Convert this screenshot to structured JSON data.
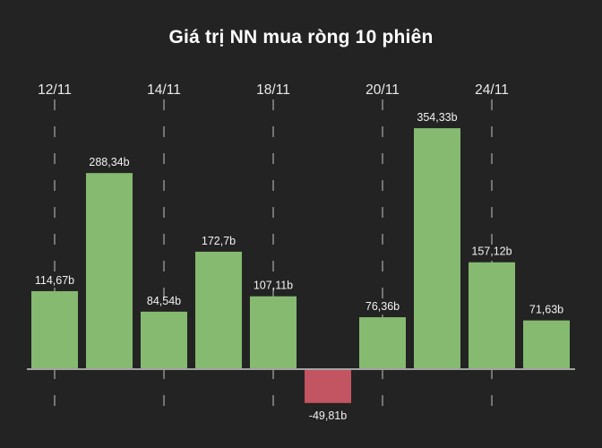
{
  "page": {
    "background": "#232323"
  },
  "chart_data": {
    "type": "bar",
    "title": "Giá trị NN mua ròng 10 phiên",
    "unit_suffix": "b",
    "x_tick_labels": [
      "12/11",
      "14/11",
      "18/11",
      "20/11",
      "24/11"
    ],
    "x_tick_bar_indices": [
      0,
      2,
      4,
      6,
      8
    ],
    "grid": "vertical-dashed",
    "ylim": [
      -60,
      370
    ],
    "bars": [
      {
        "label": "114,67b",
        "value": 114.67
      },
      {
        "label": "288,34b",
        "value": 288.34
      },
      {
        "label": "84,54b",
        "value": 84.54
      },
      {
        "label": "172,7b",
        "value": 172.7
      },
      {
        "label": "107,11b",
        "value": 107.11
      },
      {
        "label": "-49,81b",
        "value": -49.81
      },
      {
        "label": "76,36b",
        "value": 76.36
      },
      {
        "label": "354,33b",
        "value": 354.33
      },
      {
        "label": "157,12b",
        "value": 157.12
      },
      {
        "label": "71,63b",
        "value": 71.63
      }
    ],
    "colors": {
      "positive_bar": "#85ba70",
      "negative_bar": "#c25561",
      "axis_line": "#a3a3a3",
      "grid_dash": "#909090",
      "title_text": "#ffffff",
      "tick_text": "#ebebeb",
      "value_text": "#f2f2f2",
      "background": "#232323"
    }
  }
}
